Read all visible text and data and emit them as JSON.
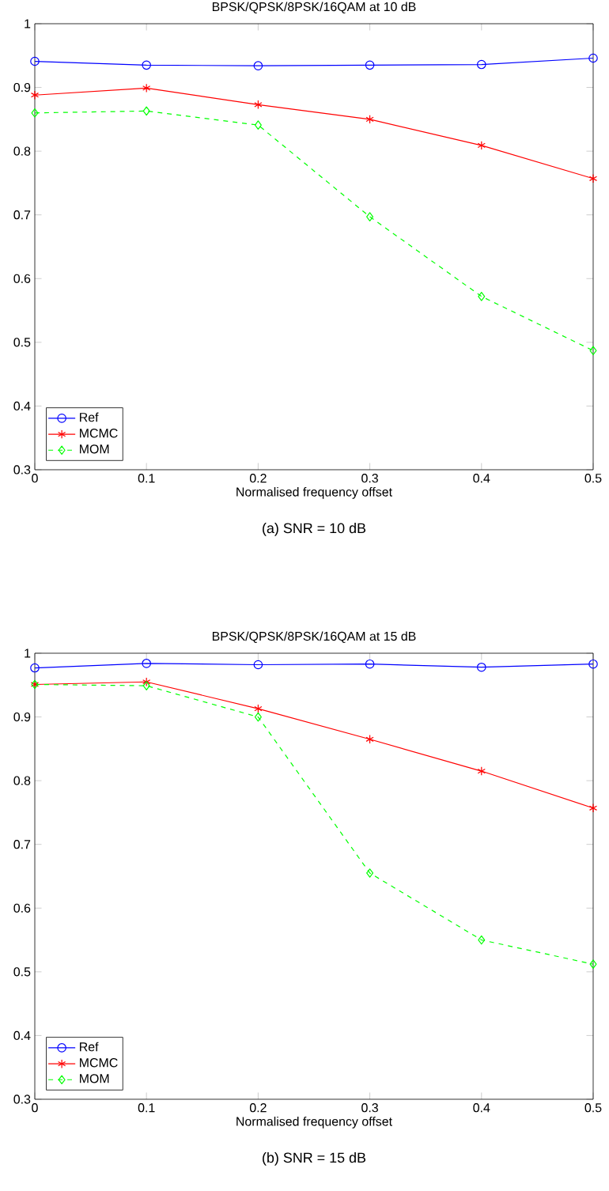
{
  "chart_data": [
    {
      "type": "line",
      "title": "BPSK/QPSK/8PSK/16QAM at 10 dB",
      "xlabel": "Normalised frequency offset",
      "x": [
        0,
        0.1,
        0.2,
        0.3,
        0.4,
        0.5
      ],
      "xlim": [
        0,
        0.5
      ],
      "xticks": [
        0,
        0.1,
        0.2,
        0.3,
        0.4,
        0.5
      ],
      "ylim": [
        0.3,
        1
      ],
      "yticks": [
        0.3,
        0.4,
        0.5,
        0.6,
        0.7,
        0.8,
        0.9,
        1
      ],
      "legend": "bottom left",
      "grid": false,
      "annotations": [
        "(a) SNR = 10 dB"
      ],
      "series": [
        {
          "name": "Ref",
          "color": "#0000ff",
          "marker": "circle",
          "line_style": "solid",
          "values": [
            0.941,
            0.935,
            0.934,
            0.935,
            0.936,
            0.946
          ]
        },
        {
          "name": "MCMC",
          "color": "#ff0000",
          "marker": "cross",
          "line_style": "solid",
          "values": [
            0.888,
            0.899,
            0.873,
            0.85,
            0.809,
            0.757
          ]
        },
        {
          "name": "MOM",
          "color": "#00ff00",
          "marker": "diamond",
          "line_style": "dashed",
          "values": [
            0.86,
            0.863,
            0.841,
            0.697,
            0.572,
            0.487
          ]
        }
      ]
    },
    {
      "type": "line",
      "title": "BPSK/QPSK/8PSK/16QAM at 15 dB",
      "xlabel": "Normalised frequency offset",
      "x": [
        0,
        0.1,
        0.2,
        0.3,
        0.4,
        0.5
      ],
      "xlim": [
        0,
        0.5
      ],
      "xticks": [
        0,
        0.1,
        0.2,
        0.3,
        0.4,
        0.5
      ],
      "ylim": [
        0.3,
        1
      ],
      "yticks": [
        0.3,
        0.4,
        0.5,
        0.6,
        0.7,
        0.8,
        0.9,
        1
      ],
      "legend": "bottom left",
      "grid": false,
      "annotations": [
        "(b) SNR = 15 dB"
      ],
      "series": [
        {
          "name": "Ref",
          "color": "#0000ff",
          "marker": "circle",
          "line_style": "solid",
          "values": [
            0.977,
            0.984,
            0.982,
            0.983,
            0.978,
            0.983
          ]
        },
        {
          "name": "MCMC",
          "color": "#ff0000",
          "marker": "cross",
          "line_style": "solid",
          "values": [
            0.951,
            0.955,
            0.913,
            0.865,
            0.815,
            0.757
          ]
        },
        {
          "name": "MOM",
          "color": "#00ff00",
          "marker": "diamond",
          "line_style": "dashed",
          "values": [
            0.951,
            0.949,
            0.9,
            0.655,
            0.55,
            0.512
          ]
        }
      ]
    }
  ]
}
